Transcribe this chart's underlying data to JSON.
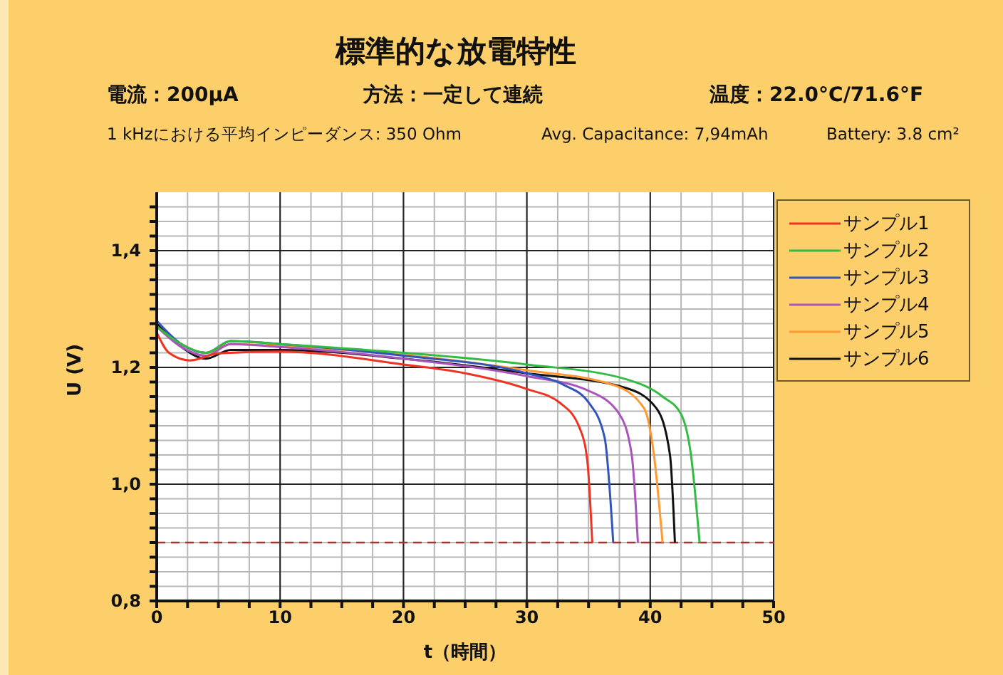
{
  "chart_data": {
    "type": "line",
    "title": "標準的な放電特性",
    "annotations": [
      "電流：200μA",
      "方法：一定して連続",
      "温度：22.0°C/71.6°F",
      "1 kHzにおける平均インピーダンス: 350 Ohm",
      "Avg. Capacitance: 7,94mAh",
      "Battery: 3.8 cm²"
    ],
    "xlabel": "t（時間）",
    "ylabel": "U (V)",
    "xlim": [
      0,
      50
    ],
    "xticks": [
      0,
      {
        "value": 2.5,
        "label": null
      },
      {
        "value": 5,
        "label": null
      },
      {
        "value": 7.5,
        "label": null
      },
      10,
      {
        "value": 12.5,
        "label": null
      },
      {
        "value": 15,
        "label": null
      },
      {
        "value": 17.5,
        "label": null
      },
      20,
      {
        "value": 22.5,
        "label": null
      },
      {
        "value": 25,
        "label": null
      },
      {
        "value": 27.5,
        "label": null
      },
      30,
      {
        "value": 32.5,
        "label": null
      },
      {
        "value": 35,
        "label": null
      },
      {
        "value": 37.5,
        "label": null
      },
      40,
      {
        "value": 42.5,
        "label": null
      },
      {
        "value": 45,
        "label": null
      },
      {
        "value": 47.5,
        "label": null
      },
      50
    ],
    "ylim": [
      0.8,
      1.5
    ],
    "yticks": [
      {
        "value": 0.8,
        "label": "0,8"
      },
      {
        "value": 0.825,
        "label": null
      },
      {
        "value": 0.85,
        "label": null
      },
      {
        "value": 0.875,
        "label": null
      },
      {
        "value": 0.9,
        "label": null
      },
      {
        "value": 0.925,
        "label": null
      },
      {
        "value": 0.95,
        "label": null
      },
      {
        "value": 0.975,
        "label": null
      },
      {
        "value": 1.0,
        "label": "1,0"
      },
      {
        "value": 1.025,
        "label": null
      },
      {
        "value": 1.05,
        "label": null
      },
      {
        "value": 1.075,
        "label": null
      },
      {
        "value": 1.1,
        "label": null
      },
      {
        "value": 1.125,
        "label": null
      },
      {
        "value": 1.15,
        "label": null
      },
      {
        "value": 1.175,
        "label": null
      },
      {
        "value": 1.2,
        "label": "1,2"
      },
      {
        "value": 1.225,
        "label": null
      },
      {
        "value": 1.25,
        "label": null
      },
      {
        "value": 1.275,
        "label": null
      },
      {
        "value": 1.3,
        "label": null
      },
      {
        "value": 1.325,
        "label": null
      },
      {
        "value": 1.35,
        "label": null
      },
      {
        "value": 1.375,
        "label": null
      },
      {
        "value": 1.4,
        "label": "1,4"
      },
      {
        "value": 1.425,
        "label": null
      },
      {
        "value": 1.45,
        "label": null
      },
      {
        "value": 1.475,
        "label": null
      }
    ],
    "grid": true,
    "legend": "top right",
    "marker": "none",
    "line_style": "solid",
    "ref_lines": [
      {
        "axis": "y",
        "value": 0.9,
        "label": null,
        "color": "#a83232",
        "line_style": "dashed"
      }
    ],
    "series": [
      {
        "name": "サンプル1",
        "color": "#ee3322",
        "x": [
          0,
          1,
          2.7,
          5,
          10,
          20,
          25,
          30,
          32.7,
          34.3,
          34.9,
          35.3
        ],
        "values": [
          1.26,
          1.225,
          1.212,
          1.224,
          1.227,
          1.205,
          1.19,
          1.163,
          1.139,
          1.095,
          1.04,
          0.9
        ]
      },
      {
        "name": "サンプル2",
        "color": "#33bb44",
        "x": [
          0,
          2,
          4,
          6,
          10,
          20,
          30,
          38,
          41,
          42.5,
          43.3,
          44
        ],
        "values": [
          1.27,
          1.24,
          1.225,
          1.245,
          1.24,
          1.225,
          1.205,
          1.18,
          1.15,
          1.12,
          1.05,
          0.9
        ]
      },
      {
        "name": "サンプル3",
        "color": "#3355bb",
        "x": [
          0,
          2,
          4,
          6,
          10,
          20,
          30,
          33,
          35,
          36.3,
          37
        ],
        "values": [
          1.28,
          1.24,
          1.225,
          1.245,
          1.24,
          1.22,
          1.19,
          1.17,
          1.14,
          1.08,
          0.9
        ]
      },
      {
        "name": "サンプル4",
        "color": "#aa55bb",
        "x": [
          0,
          2,
          4,
          6,
          10,
          20,
          30,
          35,
          37.5,
          38.5,
          39
        ],
        "values": [
          1.27,
          1.235,
          1.22,
          1.24,
          1.235,
          1.215,
          1.185,
          1.16,
          1.12,
          1.05,
          0.9
        ]
      },
      {
        "name": "サンプル5",
        "color": "#ff9933",
        "x": [
          0,
          2,
          4,
          6,
          10,
          30,
          37,
          39.5,
          40.3,
          41
        ],
        "values": [
          1.27,
          1.24,
          1.225,
          1.24,
          1.237,
          1.195,
          1.17,
          1.13,
          1.05,
          0.9
        ]
      },
      {
        "name": "サンプル6",
        "color": "#111111",
        "x": [
          0,
          2,
          4,
          6,
          10,
          20,
          30,
          38,
          40.5,
          41.6,
          42
        ],
        "values": [
          1.275,
          1.235,
          1.215,
          1.23,
          1.23,
          1.215,
          1.19,
          1.165,
          1.13,
          1.05,
          0.9
        ]
      }
    ]
  }
}
